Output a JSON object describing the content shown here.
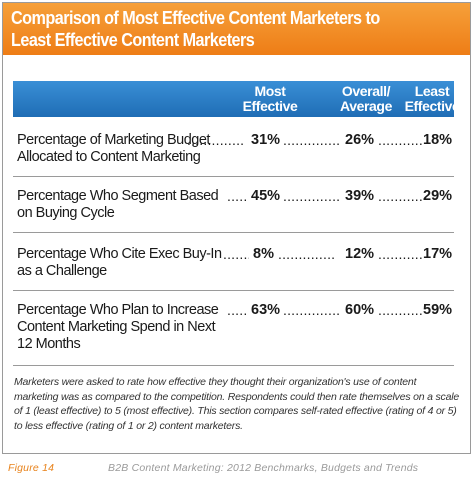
{
  "chart_data": {
    "type": "table",
    "title_lines": [
      "Comparison of Most Effective Content Marketers to",
      "Least Effective Content Marketers"
    ],
    "columns": [
      {
        "key": "most",
        "label_lines": [
          "Most",
          "Effective"
        ]
      },
      {
        "key": "overall",
        "label_lines": [
          "Overall/",
          "Average"
        ]
      },
      {
        "key": "least",
        "label_lines": [
          "Least",
          "Effective"
        ]
      }
    ],
    "rows": [
      {
        "label_lines": [
          "Percentage of Marketing Budget",
          "Allocated to Content Marketing"
        ],
        "most": "31%",
        "overall": "26%",
        "least": "18%"
      },
      {
        "label_lines": [
          "Percentage Who Segment Based",
          "on Buying Cycle"
        ],
        "most": "45%",
        "overall": "39%",
        "least": "29%"
      },
      {
        "label_lines": [
          "Percentage Who Cite Exec Buy-In",
          "as a Challenge"
        ],
        "most": "8%",
        "overall": "12%",
        "least": "17%"
      },
      {
        "label_lines": [
          "Percentage Who Plan to Increase",
          "Content Marketing Spend in Next",
          "12 Months"
        ],
        "most": "63%",
        "overall": "60%",
        "least": "59%"
      }
    ],
    "leader": "..............",
    "footnote": "Marketers were asked to rate how effective they thought their organization's use of content marketing was as compared to the competition. Respondents could then rate themselves on a scale of 1 (least effective) to 5 (most effective). This section compares self-rated effective (rating of 4 or 5) to less effective (rating of 1 or 2) content marketers."
  },
  "footer": {
    "figure_label": "Figure 14",
    "source": "B2B Content Marketing: 2012 Benchmarks, Budgets and Trends"
  },
  "colors": {
    "title_bar": "#ee7d16",
    "header_bar": "#1f6db5",
    "figure_label": "#e8831c"
  }
}
